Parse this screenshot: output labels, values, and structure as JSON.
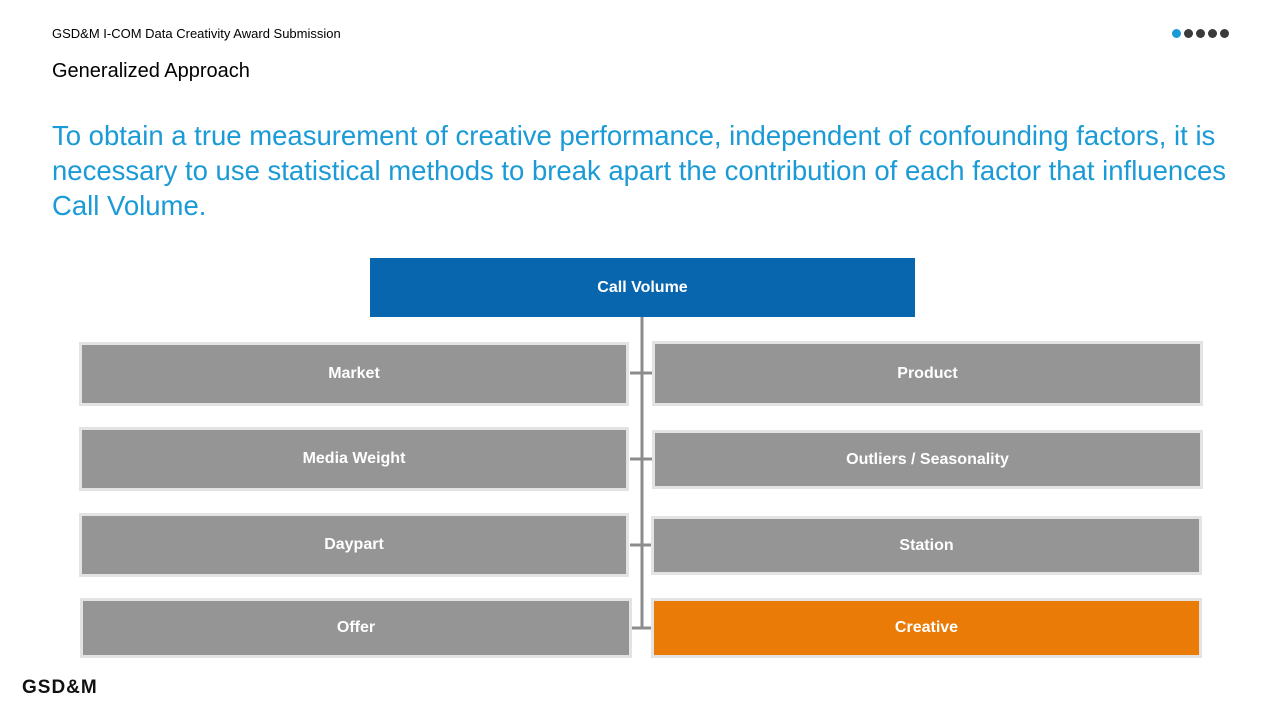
{
  "header": {
    "subtitle": "GSD&M I-COM Data Creativity Award Submission",
    "title": "Generalized Approach"
  },
  "progress": {
    "total": 5,
    "current": 1
  },
  "headline": "To obtain a true measurement of creative performance, independent of confounding factors, it is necessary to use statistical methods to break apart the contribution of each factor that influences Call Volume.",
  "diagram": {
    "root": "Call Volume",
    "left": [
      "Market",
      "Media Weight",
      "Daypart",
      "Offer"
    ],
    "right": [
      "Product",
      "Outliers / Seasonality",
      "Station",
      "Creative"
    ],
    "highlighted": "Creative"
  },
  "colors": {
    "accent": "#1a9ad6",
    "root_fill": "#0866ae",
    "factor_fill": "#959595",
    "highlight_fill": "#ea7b06"
  },
  "footer": {
    "logo": "GSD&M"
  }
}
